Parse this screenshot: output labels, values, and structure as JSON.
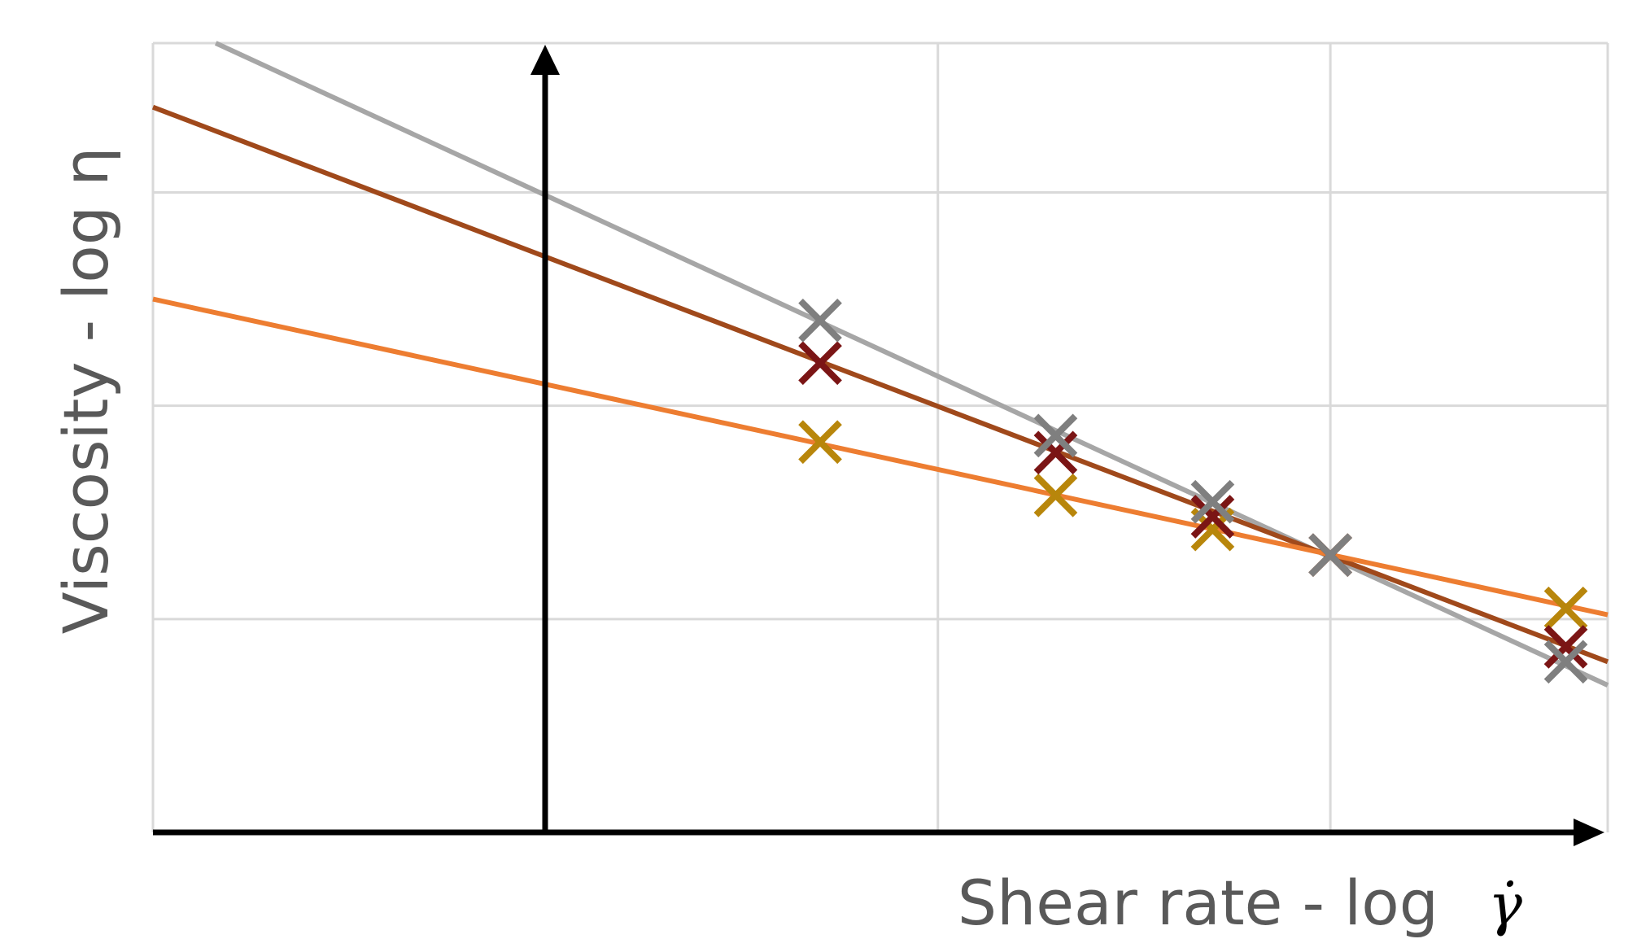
{
  "chart_data": {
    "type": "scatter",
    "title": "",
    "xlabel": "Shear rate - log",
    "xlabel_symbol": "γ̇",
    "ylabel": "Viscosity - log η",
    "xlim": [
      0,
      5.56
    ],
    "ylim": [
      0,
      3.7
    ],
    "x_gridlines": [
      0,
      3.0,
      4.5,
      5.56
    ],
    "y_gridlines": [
      1.0,
      2.0,
      3.0,
      3.7
    ],
    "grid": true,
    "legend": "none",
    "y_axis_at_x": 1.5,
    "series": [
      {
        "color": "#A6A6A6",
        "marker_color": "#7F7F7F",
        "line": [
          [
            0.24,
            3.7
          ],
          [
            5.56,
            0.69
          ]
        ],
        "points": [
          [
            2.55,
            2.4
          ],
          [
            3.45,
            1.86
          ],
          [
            4.05,
            1.55
          ],
          [
            4.5,
            1.3
          ],
          [
            5.4,
            0.8
          ]
        ]
      },
      {
        "color": "#A0491B",
        "marker_color": "#7B1515",
        "line": [
          [
            0.0,
            3.4
          ],
          [
            5.56,
            0.8
          ]
        ],
        "points": [
          [
            2.55,
            2.2
          ],
          [
            3.45,
            1.78
          ],
          [
            4.05,
            1.48
          ],
          [
            4.5,
            1.3
          ],
          [
            5.4,
            0.87
          ]
        ]
      },
      {
        "color": "#ED7D31",
        "marker_color": "#B8860B",
        "line": [
          [
            0.0,
            2.5
          ],
          [
            5.56,
            1.02
          ]
        ],
        "points": [
          [
            2.55,
            1.83
          ],
          [
            3.45,
            1.58
          ],
          [
            4.05,
            1.42
          ],
          [
            4.5,
            1.3
          ],
          [
            5.4,
            1.05
          ]
        ]
      }
    ]
  },
  "colors": {
    "grid": "#D9D9D9",
    "axis": "#000000",
    "text": "#595959"
  }
}
